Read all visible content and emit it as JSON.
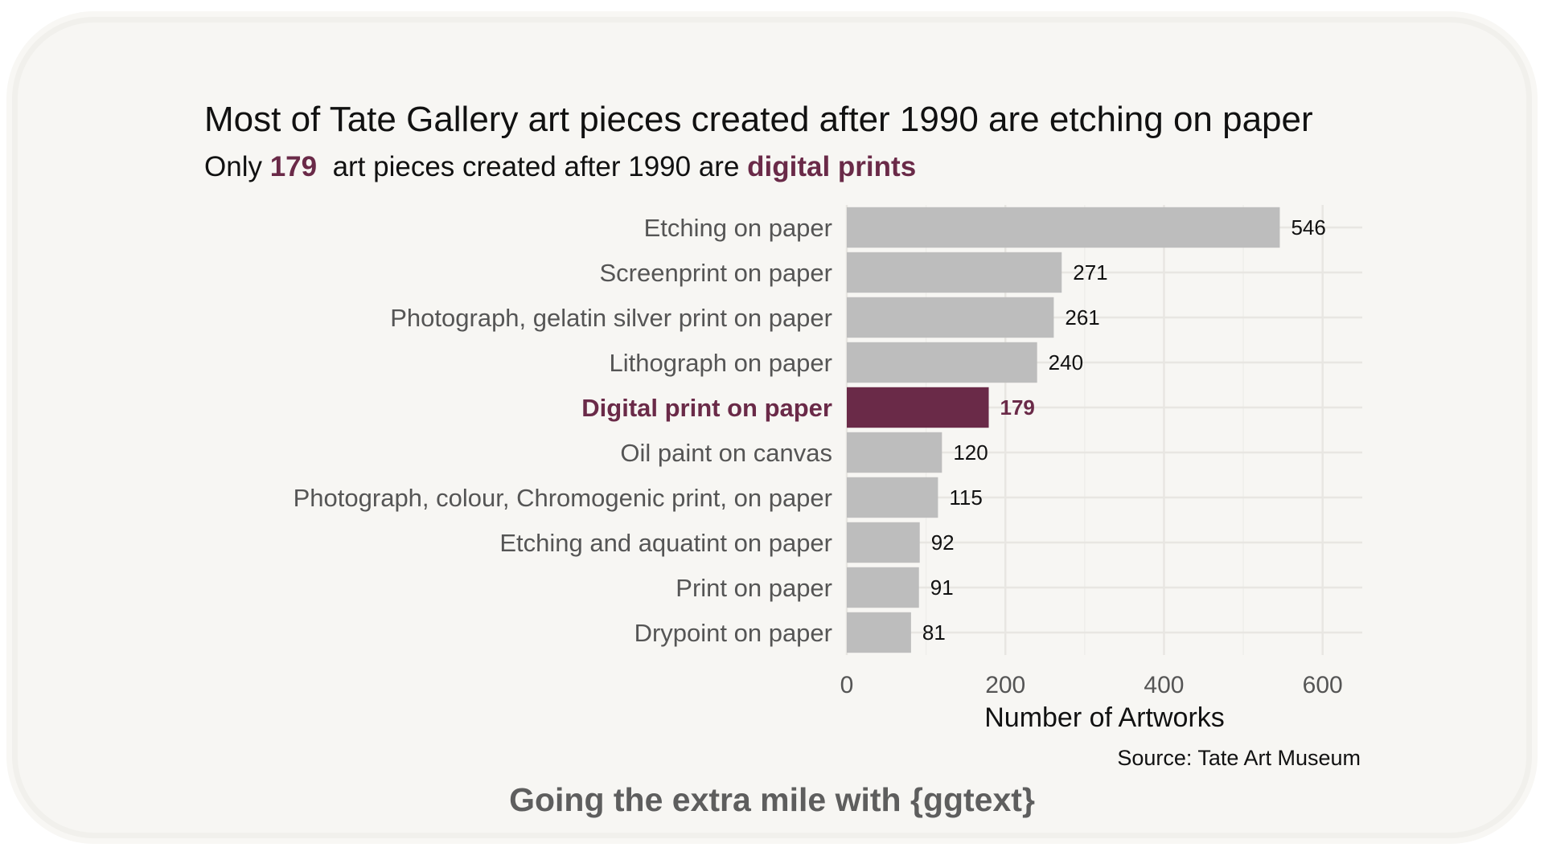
{
  "colors": {
    "highlight": "#6a2a48",
    "bar": "#bdbdbd",
    "grid_major": "#e8e6e2",
    "grid_minor": "#efeeeb",
    "background": "#f7f6f3"
  },
  "header": {
    "title": "Most of Tate Gallery art pieces created after 1990 are etching on paper",
    "subtitle_pre": "Only",
    "subtitle_count": "179",
    "subtitle_mid": "art pieces created after 1990 are",
    "subtitle_highlight": "digital prints"
  },
  "chart_data": {
    "type": "bar",
    "orientation": "horizontal",
    "categories": [
      "Etching on paper",
      "Screenprint on paper",
      "Photograph, gelatin silver print on paper",
      "Lithograph on paper",
      "Digital print on paper",
      "Oil paint on canvas",
      "Photograph, colour, Chromogenic print, on paper",
      "Etching and aquatint on paper",
      "Print on paper",
      "Drypoint on paper"
    ],
    "values": [
      546,
      271,
      261,
      240,
      179,
      120,
      115,
      92,
      91,
      81
    ],
    "highlight": "Digital print on paper",
    "xlabel": "Number of Artworks",
    "ylabel": "",
    "xlim": [
      0,
      650
    ],
    "xticks": [
      0,
      200,
      400,
      600
    ],
    "grid": true
  },
  "caption": "Source: Tate Art Museum",
  "footer": "Going the extra mile with {ggtext}"
}
